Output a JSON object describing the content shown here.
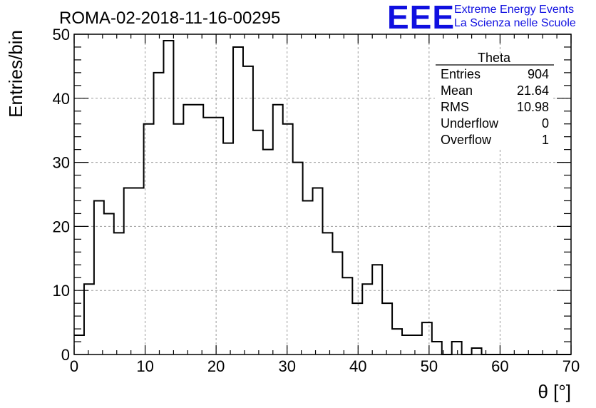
{
  "run_title": "ROMA-02-2018-11-16-00295",
  "logo": {
    "mark": "EEE",
    "line1": "Extreme Energy Events",
    "line2": "La Scienza nelle Scuole",
    "color": "#1010e0"
  },
  "stats": {
    "title": "Theta",
    "rows": [
      {
        "label": "Entries",
        "value": "904"
      },
      {
        "label": "Mean",
        "value": "21.64"
      },
      {
        "label": "RMS",
        "value": "10.98"
      },
      {
        "label": "Underflow",
        "value": "0"
      },
      {
        "label": "Overflow",
        "value": "1"
      }
    ]
  },
  "chart_data": {
    "type": "bar",
    "histogram": true,
    "xlabel": "θ [°]",
    "ylabel": "Entries/bin",
    "xlim": [
      0,
      70
    ],
    "ylim": [
      0,
      50
    ],
    "bin_width": 1.4,
    "grid": true,
    "line_color": "#000000",
    "x_ticks": [
      "0",
      "10",
      "20",
      "30",
      "40",
      "50",
      "60",
      "70"
    ],
    "y_ticks": [
      "0",
      "10",
      "20",
      "30",
      "40",
      "50"
    ],
    "bin_edges_start": 0,
    "values": [
      3,
      11,
      24,
      22,
      19,
      26,
      26,
      36,
      44,
      49,
      36,
      39,
      39,
      37,
      37,
      33,
      48,
      45,
      35,
      32,
      39,
      36,
      30,
      24,
      26,
      19,
      16,
      12,
      8,
      11,
      14,
      8,
      4,
      3,
      3,
      5,
      2,
      0,
      2,
      0,
      1,
      0,
      0,
      0,
      0,
      0,
      0,
      0,
      0,
      0
    ]
  }
}
